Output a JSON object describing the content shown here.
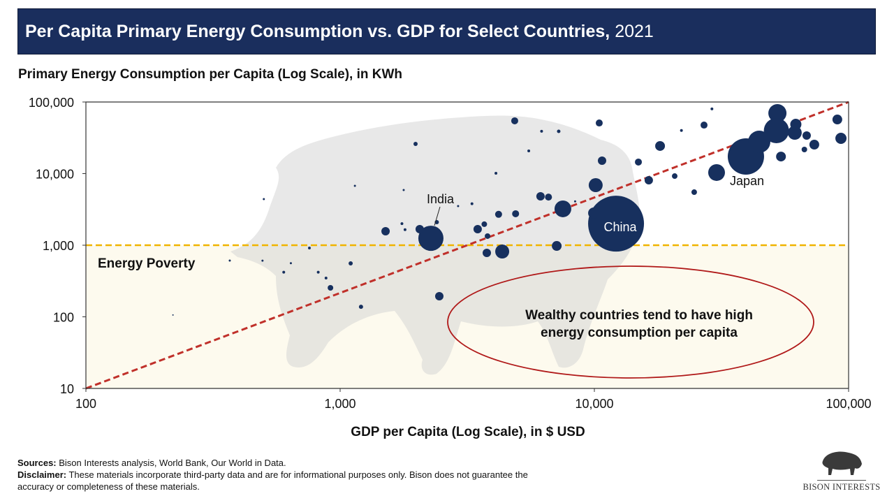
{
  "header": {
    "title_bold": "Per Capita Primary Energy Consumption vs. GDP for Select Countries,",
    "title_year": "2021"
  },
  "chart_data": {
    "type": "scatter",
    "title": "Per Capita Primary Energy Consumption vs. GDP for Select Countries, 2021",
    "ylabel": "Primary Energy Consumption per Capita (Log Scale), in KWh",
    "xlabel": "GDP per Capita (Log Scale), in $ USD",
    "x_scale": "log",
    "y_scale": "log",
    "xlim": [
      100,
      100000
    ],
    "ylim": [
      10,
      100000
    ],
    "x_ticks": [
      "100",
      "1,000",
      "10,000",
      "100,000"
    ],
    "y_ticks": [
      "100,000",
      "10,000",
      "1,000",
      "100",
      "10"
    ],
    "grid": false,
    "marker_color": "#17305e",
    "points": [
      {
        "label": "India",
        "x": 2275,
        "y": 1250,
        "size": 18
      },
      {
        "label": "China",
        "x": 12170,
        "y": 2000,
        "size": 40
      },
      {
        "label": "Japan",
        "x": 30250,
        "y": 10350,
        "size": 12
      },
      {
        "x": 39450,
        "y": 17330,
        "size": 26
      },
      {
        "x": 44500,
        "y": 27800,
        "size": 16
      },
      {
        "x": 52480,
        "y": 69800,
        "size": 13
      },
      {
        "x": 52000,
        "y": 39800,
        "size": 18
      },
      {
        "x": 61400,
        "y": 37200,
        "size": 10
      },
      {
        "x": 62000,
        "y": 48700,
        "size": 8
      },
      {
        "x": 54200,
        "y": 17300,
        "size": 7
      },
      {
        "x": 68400,
        "y": 34000,
        "size": 6
      },
      {
        "x": 73300,
        "y": 25400,
        "size": 7
      },
      {
        "x": 67000,
        "y": 21700,
        "size": 4
      },
      {
        "x": 90300,
        "y": 57000,
        "size": 7
      },
      {
        "x": 93300,
        "y": 31100,
        "size": 8
      },
      {
        "x": 9940,
        "y": 2810,
        "size": 8
      },
      {
        "x": 7520,
        "y": 3220,
        "size": 12
      },
      {
        "x": 10120,
        "y": 6900,
        "size": 10
      },
      {
        "x": 18130,
        "y": 24300,
        "size": 7
      },
      {
        "x": 4340,
        "y": 817,
        "size": 10
      },
      {
        "x": 3775,
        "y": 781,
        "size": 6
      },
      {
        "x": 7110,
        "y": 977,
        "size": 7
      },
      {
        "x": 1509,
        "y": 1567,
        "size": 6
      },
      {
        "x": 2056,
        "y": 1675,
        "size": 6
      },
      {
        "x": 2455,
        "y": 194,
        "size": 6
      },
      {
        "x": 3475,
        "y": 1675,
        "size": 6
      },
      {
        "x": 3690,
        "y": 1965,
        "size": 4
      },
      {
        "x": 3800,
        "y": 1340,
        "size": 4
      },
      {
        "x": 6140,
        "y": 4820,
        "size": 6
      },
      {
        "x": 6600,
        "y": 4700,
        "size": 5
      },
      {
        "x": 10720,
        "y": 15140,
        "size": 6
      },
      {
        "x": 14900,
        "y": 14500,
        "size": 5
      },
      {
        "x": 16370,
        "y": 8080,
        "size": 6
      },
      {
        "x": 4860,
        "y": 54600,
        "size": 5
      },
      {
        "x": 10450,
        "y": 50900,
        "size": 5
      },
      {
        "x": 27000,
        "y": 47600,
        "size": 5
      },
      {
        "x": 1980,
        "y": 26000,
        "size": 3
      },
      {
        "x": 916,
        "y": 254,
        "size": 4
      },
      {
        "x": 1208,
        "y": 138,
        "size": 3
      },
      {
        "x": 1100,
        "y": 557,
        "size": 3
      },
      {
        "x": 880,
        "y": 348,
        "size": 2
      },
      {
        "x": 20700,
        "y": 9240,
        "size": 4
      },
      {
        "x": 24700,
        "y": 5510,
        "size": 4
      },
      {
        "x": 501,
        "y": 4400,
        "size": 1.5
      },
      {
        "x": 368,
        "y": 610,
        "size": 1.5
      },
      {
        "x": 495,
        "y": 608,
        "size": 1.5
      },
      {
        "x": 220,
        "y": 106,
        "size": 1
      },
      {
        "x": 757,
        "y": 914,
        "size": 2
      },
      {
        "x": 1143,
        "y": 6750,
        "size": 1.5
      },
      {
        "x": 1778,
        "y": 5900,
        "size": 1.5
      },
      {
        "x": 2911,
        "y": 3520,
        "size": 1.5
      },
      {
        "x": 4100,
        "y": 10100,
        "size": 2
      },
      {
        "x": 5520,
        "y": 20750,
        "size": 2
      },
      {
        "x": 7240,
        "y": 38900,
        "size": 2.5
      },
      {
        "x": 6200,
        "y": 39000,
        "size": 2
      },
      {
        "x": 2400,
        "y": 2100,
        "size": 3
      },
      {
        "x": 1750,
        "y": 2000,
        "size": 2
      },
      {
        "x": 4200,
        "y": 2700,
        "size": 5
      },
      {
        "x": 4900,
        "y": 2750,
        "size": 5
      },
      {
        "x": 3300,
        "y": 3800,
        "size": 2
      },
      {
        "x": 8400,
        "y": 4100,
        "size": 1.5
      },
      {
        "x": 22000,
        "y": 40000,
        "size": 2
      },
      {
        "x": 29000,
        "y": 80000,
        "size": 2
      },
      {
        "x": 1800,
        "y": 1650,
        "size": 2
      },
      {
        "x": 640,
        "y": 560,
        "size": 1.5
      },
      {
        "x": 600,
        "y": 420,
        "size": 2
      },
      {
        "x": 820,
        "y": 420,
        "size": 2
      }
    ],
    "trend_line": {
      "from": [
        100,
        10
      ],
      "to": [
        100000,
        100000
      ],
      "color": "#b22222",
      "style": "dashed"
    },
    "threshold_line": {
      "y": 1000,
      "color": "#f0b400",
      "style": "dashed",
      "label": "Energy Poverty"
    },
    "annotation": "Wealthy countries tend to have high energy consumption per capita",
    "annotation_line1": "Wealthy countries tend to have high",
    "annotation_line2": "energy consumption per capita"
  },
  "footer": {
    "sources_label": "Sources:",
    "sources_text": " Bison Interests analysis, World Bank, Our World in Data.",
    "disclaimer_label": "Disclaimer:",
    "disclaimer_text": " These materials incorporate third-party data and are for informational purposes only. Bison does not guarantee the accuracy or completeness of these materials."
  },
  "logo": {
    "text": "BISON INTERESTS"
  }
}
